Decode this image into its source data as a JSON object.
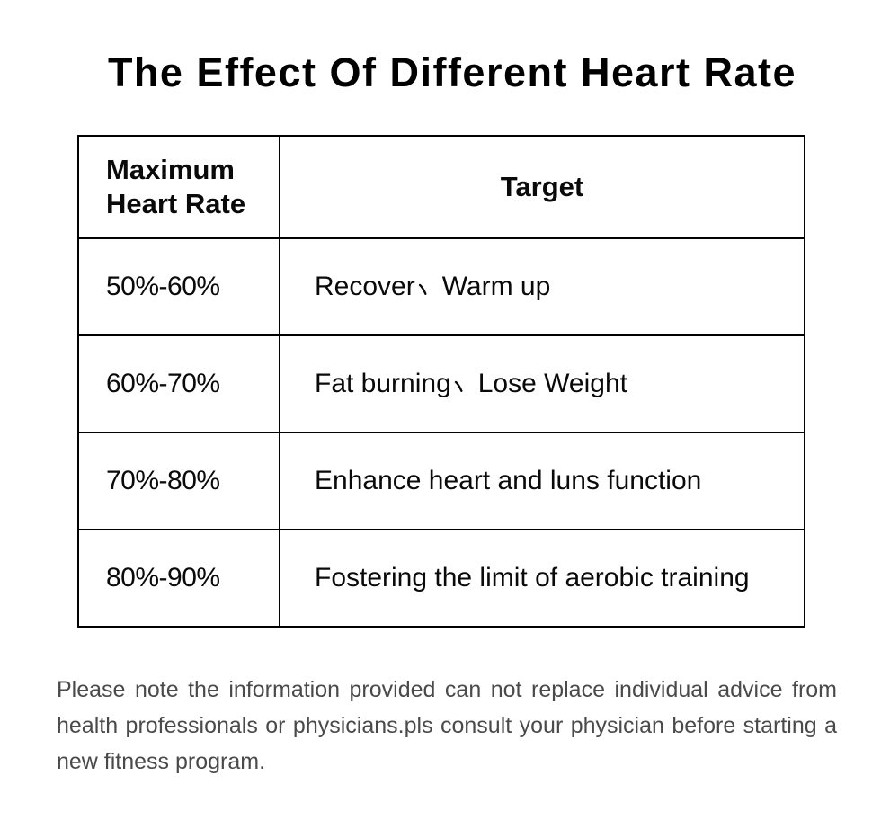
{
  "title": "The Effect Of Different Heart Rate",
  "table": {
    "headers": [
      "Maximum Heart Rate",
      "Target"
    ],
    "rows": [
      {
        "max_heart_rate": "50%-60%",
        "target": "Recover、Warm up"
      },
      {
        "max_heart_rate": "60%-70%",
        "target": "Fat burning、Lose Weight"
      },
      {
        "max_heart_rate": "70%-80%",
        "target": "Enhance heart and luns function"
      },
      {
        "max_heart_rate": "80%-90%",
        "target": "Fostering the limit of aerobic training"
      }
    ]
  },
  "note": {
    "lines": [
      "Please note the information provided can not replace individual advice from",
      "health professionals or physicians.pls consult your physician before starting a",
      "new fitness program."
    ],
    "text": "Please note the information provided can not replace individual advice from health professionals or physicians.pls consult your physician before starting a new fitness program."
  },
  "colors": {
    "title_text": "#000000",
    "table_text": "#0a0a0a",
    "table_border": "#000000",
    "note_text": "#4a4a4a",
    "background": "#ffffff"
  },
  "chart_data": {
    "type": "table",
    "title": "The Effect Of Different Heart Rate",
    "columns": [
      "Maximum Heart Rate",
      "Target"
    ],
    "rows": [
      [
        "50%-60%",
        "Recover、Warm up"
      ],
      [
        "60%-70%",
        "Fat burning、Lose Weight"
      ],
      [
        "70%-80%",
        "Enhance heart and luns function"
      ],
      [
        "80%-90%",
        "Fostering the limit of aerobic training"
      ]
    ]
  }
}
